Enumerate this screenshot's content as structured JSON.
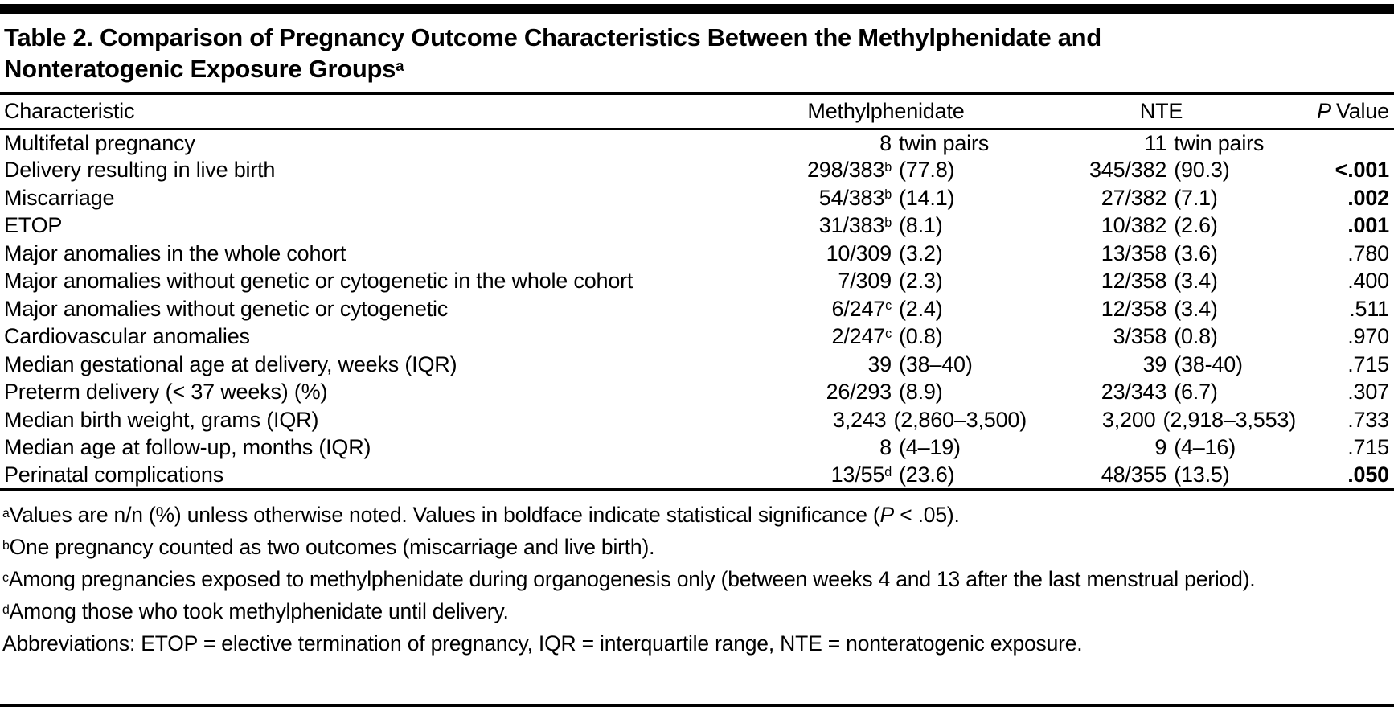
{
  "colors": {
    "text": "#000000",
    "background": "#ffffff",
    "rule": "#000000"
  },
  "table": {
    "title_line1": "Table 2. Comparison of Pregnancy Outcome Characteristics Between the Methylphenidate and",
    "title_line2": "Nonteratogenic Exposure Groups",
    "title_sup": "a"
  },
  "header": {
    "characteristic": "Characteristic",
    "group1": "Methylphenidate",
    "group2": "NTE",
    "p_italic": "P",
    "p_rest": "Value"
  },
  "rows": [
    {
      "label": "Multifetal pregnancy",
      "g1_num": "8",
      "g1_sup": "",
      "g1_rest": "twin pairs",
      "g2_num": "11",
      "g2_sup": "",
      "g2_rest": "twin pairs",
      "p": "",
      "p_bold": false
    },
    {
      "label": "Delivery resulting in live birth",
      "g1_num": "298/383",
      "g1_sup": "b",
      "g1_rest": "(77.8)",
      "g2_num": "345/382",
      "g2_sup": "",
      "g2_rest": "(90.3)",
      "p": "<.001",
      "p_bold": true
    },
    {
      "label": "Miscarriage",
      "g1_num": "54/383",
      "g1_sup": "b",
      "g1_rest": "(14.1)",
      "g2_num": "27/382",
      "g2_sup": "",
      "g2_rest": "(7.1)",
      "p": ".002",
      "p_bold": true
    },
    {
      "label": "ETOP",
      "g1_num": "31/383",
      "g1_sup": "b",
      "g1_rest": "(8.1)",
      "g2_num": "10/382",
      "g2_sup": "",
      "g2_rest": "(2.6)",
      "p": ".001",
      "p_bold": true
    },
    {
      "label": "Major anomalies in the whole cohort",
      "g1_num": "10/309",
      "g1_sup": "",
      "g1_rest": "(3.2)",
      "g2_num": "13/358",
      "g2_sup": "",
      "g2_rest": "(3.6)",
      "p": ".780",
      "p_bold": false
    },
    {
      "label": "Major anomalies without genetic or cytogenetic in the whole cohort",
      "g1_num": "7/309",
      "g1_sup": "",
      "g1_rest": "(2.3)",
      "g2_num": "12/358",
      "g2_sup": "",
      "g2_rest": "(3.4)",
      "p": ".400",
      "p_bold": false
    },
    {
      "label": "Major anomalies without genetic or cytogenetic",
      "g1_num": "6/247",
      "g1_sup": "c",
      "g1_rest": "(2.4)",
      "g2_num": "12/358",
      "g2_sup": "",
      "g2_rest": "(3.4)",
      "p": ".511",
      "p_bold": false
    },
    {
      "label": "Cardiovascular anomalies",
      "g1_num": "2/247",
      "g1_sup": "c",
      "g1_rest": "(0.8)",
      "g2_num": "3/358",
      "g2_sup": "",
      "g2_rest": "(0.8)",
      "p": ".970",
      "p_bold": false
    },
    {
      "label": "Median gestational age at delivery, weeks (IQR)",
      "g1_num": "39",
      "g1_sup": "",
      "g1_rest": "(38–40)",
      "g2_num": "39",
      "g2_sup": "",
      "g2_rest": "(38-40)",
      "p": ".715",
      "p_bold": false
    },
    {
      "label": "Preterm delivery (< 37 weeks) (%)",
      "g1_num": "26/293",
      "g1_sup": "",
      "g1_rest": "(8.9)",
      "g2_num": "23/343",
      "g2_sup": "",
      "g2_rest": "(6.7)",
      "p": ".307",
      "p_bold": false
    },
    {
      "label": "Median birth weight, grams (IQR)",
      "g1_num": "3,243",
      "g1_sup": "",
      "g1_rest": "(2,860–3,500)",
      "g2_num": "3,200",
      "g2_sup": "",
      "g2_rest": "(2,918–3,553)",
      "p": ".733",
      "p_bold": false
    },
    {
      "label": "Median age at follow-up, months (IQR)",
      "g1_num": "8",
      "g1_sup": "",
      "g1_rest": "(4–19)",
      "g2_num": "9",
      "g2_sup": "",
      "g2_rest": "(4–16)",
      "p": ".715",
      "p_bold": false
    },
    {
      "label": "Perinatal complications",
      "g1_num": "13/55",
      "g1_sup": "d",
      "g1_rest": "(23.6)",
      "g2_num": "48/355",
      "g2_sup": "",
      "g2_rest": "(13.5)",
      "p": ".050",
      "p_bold": true
    }
  ],
  "footnotes": [
    {
      "sup": "a",
      "segments": [
        {
          "t": "Values are n/n (%) unless otherwise noted. Values in boldface indicate statistical significance ("
        },
        {
          "t": "P",
          "i": true
        },
        {
          "t": " < .05)."
        }
      ]
    },
    {
      "sup": "b",
      "segments": [
        {
          "t": "One pregnancy counted as two outcomes (miscarriage and live birth)."
        }
      ]
    },
    {
      "sup": "c",
      "segments": [
        {
          "t": "Among pregnancies exposed to methylphenidate during organogenesis only (between weeks 4 and 13 after the last menstrual period)."
        }
      ]
    },
    {
      "sup": "d",
      "segments": [
        {
          "t": "Among those who took methylphenidate until delivery."
        }
      ]
    },
    {
      "sup": "",
      "segments": [
        {
          "t": "Abbreviations: ETOP = elective termination of pregnancy, IQR = interquartile range, NTE = nonteratogenic exposure."
        }
      ]
    }
  ]
}
